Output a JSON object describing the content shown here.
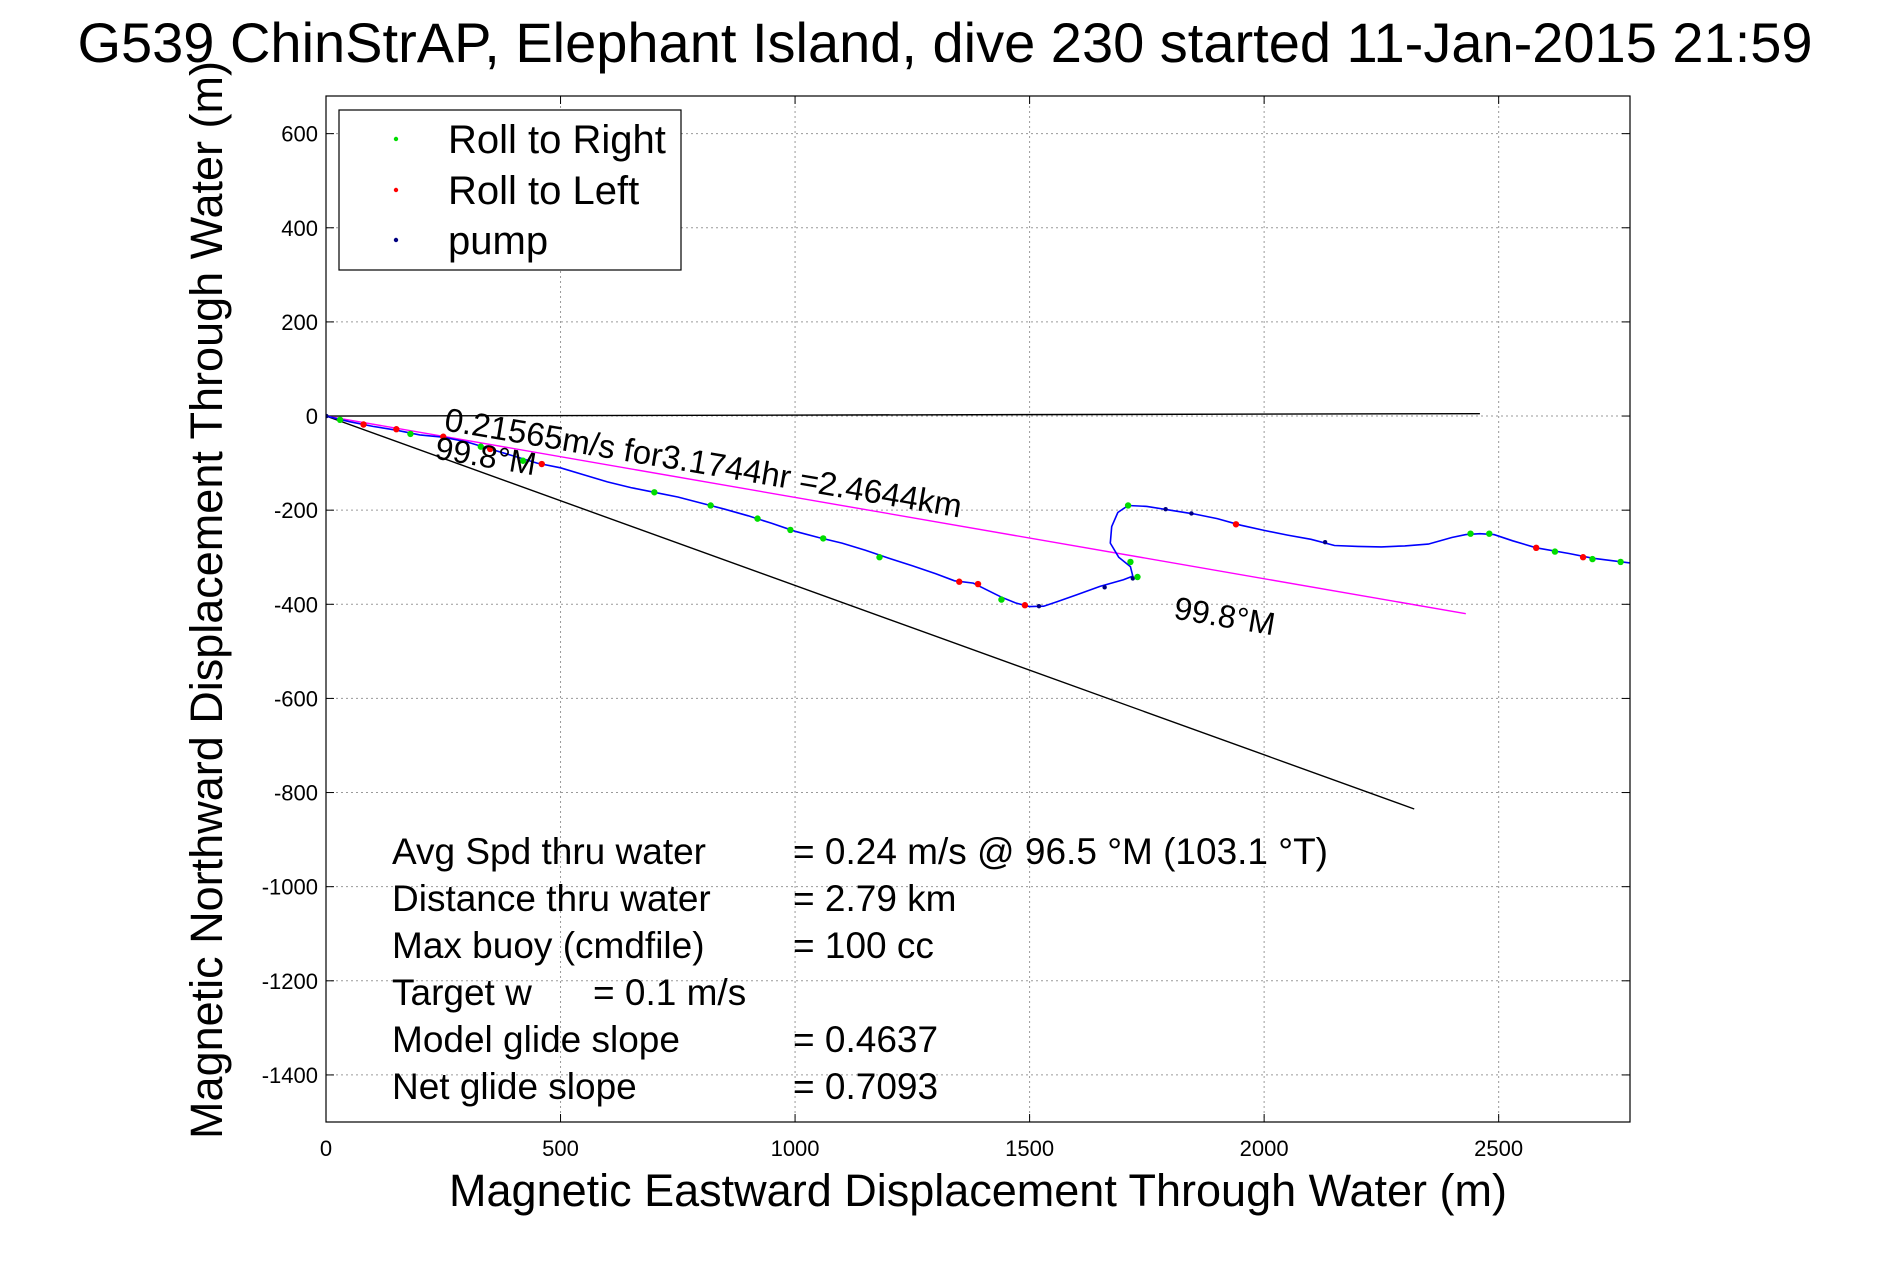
{
  "chart_data": {
    "type": "line",
    "title": "G539 ChinStrAP, Elephant Island, dive 230 started 11-Jan-2015 21:59",
    "xlabel": "Magnetic Eastward Displacement Through Water (m)",
    "ylabel": "Magnetic Northward Displacement Through Water (m)",
    "xlim": [
      0,
      2780
    ],
    "ylim": [
      -1500,
      680
    ],
    "xticks": [
      0,
      500,
      1000,
      1500,
      2000,
      2500
    ],
    "yticks": [
      600,
      400,
      200,
      0,
      -200,
      -400,
      -600,
      -800,
      -1000,
      -1200,
      -1400
    ],
    "grid": true,
    "legend": {
      "placement": "top-left",
      "entries": [
        {
          "label": "Roll to Right",
          "color": "#00dd00"
        },
        {
          "label": "Roll to Left",
          "color": "#ff0000"
        },
        {
          "label": "pump",
          "color": "#000080"
        }
      ]
    },
    "track": {
      "color": "#0000ff",
      "points": [
        [
          0,
          0
        ],
        [
          50,
          -12
        ],
        [
          100,
          -22
        ],
        [
          150,
          -30
        ],
        [
          200,
          -40
        ],
        [
          250,
          -45
        ],
        [
          300,
          -55
        ],
        [
          350,
          -70
        ],
        [
          400,
          -85
        ],
        [
          450,
          -100
        ],
        [
          500,
          -110
        ],
        [
          550,
          -125
        ],
        [
          600,
          -140
        ],
        [
          650,
          -152
        ],
        [
          700,
          -162
        ],
        [
          750,
          -172
        ],
        [
          800,
          -185
        ],
        [
          850,
          -198
        ],
        [
          900,
          -212
        ],
        [
          950,
          -228
        ],
        [
          1000,
          -245
        ],
        [
          1050,
          -258
        ],
        [
          1100,
          -270
        ],
        [
          1150,
          -285
        ],
        [
          1200,
          -302
        ],
        [
          1250,
          -318
        ],
        [
          1300,
          -335
        ],
        [
          1340,
          -350
        ],
        [
          1380,
          -355
        ],
        [
          1410,
          -370
        ],
        [
          1440,
          -385
        ],
        [
          1470,
          -397
        ],
        [
          1500,
          -405
        ],
        [
          1530,
          -404
        ],
        [
          1560,
          -394
        ],
        [
          1600,
          -380
        ],
        [
          1650,
          -362
        ],
        [
          1700,
          -348
        ],
        [
          1720,
          -340
        ],
        [
          1715,
          -320
        ],
        [
          1690,
          -300
        ],
        [
          1672,
          -270
        ],
        [
          1675,
          -235
        ],
        [
          1688,
          -205
        ],
        [
          1710,
          -190
        ],
        [
          1750,
          -192
        ],
        [
          1800,
          -200
        ],
        [
          1850,
          -208
        ],
        [
          1900,
          -218
        ],
        [
          1950,
          -232
        ],
        [
          2000,
          -243
        ],
        [
          2050,
          -253
        ],
        [
          2100,
          -262
        ],
        [
          2150,
          -275
        ],
        [
          2200,
          -277
        ],
        [
          2250,
          -278
        ],
        [
          2300,
          -276
        ],
        [
          2350,
          -272
        ],
        [
          2400,
          -258
        ],
        [
          2430,
          -252
        ],
        [
          2460,
          -250
        ],
        [
          2490,
          -252
        ],
        [
          2530,
          -265
        ],
        [
          2580,
          -280
        ],
        [
          2650,
          -292
        ],
        [
          2700,
          -302
        ],
        [
          2780,
          -312
        ]
      ]
    },
    "roll_right_points": [
      [
        30,
        -8
      ],
      [
        180,
        -38
      ],
      [
        330,
        -65
      ],
      [
        420,
        -95
      ],
      [
        700,
        -162
      ],
      [
        820,
        -190
      ],
      [
        920,
        -218
      ],
      [
        990,
        -242
      ],
      [
        1060,
        -260
      ],
      [
        1180,
        -300
      ],
      [
        1440,
        -390
      ],
      [
        1710,
        -190
      ],
      [
        1715,
        -310
      ],
      [
        1730,
        -342
      ],
      [
        2440,
        -250
      ],
      [
        2480,
        -250
      ],
      [
        2620,
        -288
      ],
      [
        2700,
        -304
      ],
      [
        2760,
        -310
      ]
    ],
    "roll_left_points": [
      [
        80,
        -18
      ],
      [
        150,
        -28
      ],
      [
        250,
        -44
      ],
      [
        350,
        -70
      ],
      [
        460,
        -102
      ],
      [
        1350,
        -352
      ],
      [
        1390,
        -357
      ],
      [
        1490,
        -402
      ],
      [
        1940,
        -230
      ],
      [
        2580,
        -280
      ],
      [
        2680,
        -300
      ]
    ],
    "pump_points": [
      [
        1,
        0
      ],
      [
        1520,
        -404
      ],
      [
        1660,
        -364
      ],
      [
        1720,
        -345
      ],
      [
        1790,
        -198
      ],
      [
        1845,
        -207
      ],
      [
        2130,
        -268
      ]
    ],
    "reference_lines": [
      {
        "name": "zero-heading-line",
        "from": [
          0,
          0
        ],
        "to": [
          2460,
          5
        ],
        "color": "#000000"
      },
      {
        "name": "net-displacement-line",
        "from": [
          0,
          0
        ],
        "to": [
          2320,
          -835
        ],
        "color": "#000000"
      },
      {
        "name": "average-velocity-line",
        "from": [
          0,
          0
        ],
        "to": [
          2430,
          -420
        ],
        "color": "#ff00ff"
      }
    ],
    "annotations": [
      {
        "text": "0.21565m/s for3.1744hr =2.4644km",
        "at": [
          250,
          -30
        ],
        "rotate": 9.6
      },
      {
        "text": "99.8°M",
        "at": [
          230,
          -90
        ],
        "rotate": 9.6
      },
      {
        "text": "99.8°M",
        "at": [
          1805,
          -430
        ],
        "rotate": 9.6
      }
    ],
    "stats": [
      {
        "label": "Avg Spd thru water",
        "value": "=  0.24 m/s @  96.5 °M (103.1 °T)"
      },
      {
        "label": "Distance thru water",
        "value": "=  2.79 km"
      },
      {
        "label": "Max buoy (cmdfile)",
        "value": "= 100 cc"
      },
      {
        "label": "Target w",
        "value": "= 0.1 m/s"
      },
      {
        "label": "Model glide slope",
        "value": "= 0.4637"
      },
      {
        "label": "Net glide slope",
        "value": "= 0.7093"
      }
    ]
  }
}
